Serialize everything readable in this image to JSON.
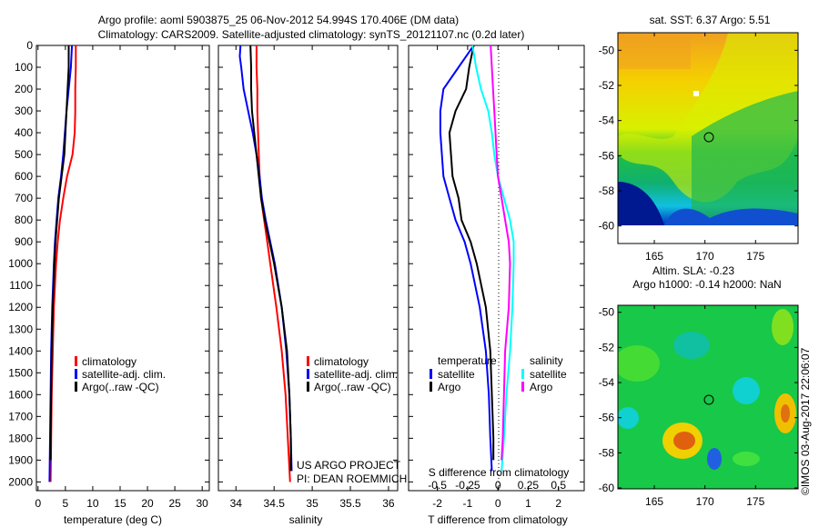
{
  "title": {
    "line1": "Argo profile: aoml 5903875_25 06-Nov-2012 54.994S 170.406E (DM data)",
    "line2": "Climatology: CARS2009. Satellite-adjusted climatology: synTS_20121107.nc (0.2d later)"
  },
  "credit": {
    "line1": "US ARGO PROJECT",
    "line2": "PI: DEAN ROEMMICH"
  },
  "stamp": "©IMOS 03-Aug-2017 22:06:07",
  "colors": {
    "climatology": "#ff0000",
    "satellite": "#0000ff",
    "argo": "#000000",
    "sal_satellite": "#00ffff",
    "sal_argo": "#ff00ff"
  },
  "chart_data": [
    {
      "type": "line",
      "title": "",
      "xlabel": "temperature (deg C)",
      "ylabel": "",
      "xlim": [
        -0.3,
        31.3
      ],
      "ylim": [
        2040,
        0
      ],
      "xticks": [
        "0",
        "5",
        "10",
        "15",
        "20",
        "25",
        "30"
      ],
      "xtick_values": [
        0,
        5,
        10,
        15,
        20,
        25,
        30
      ],
      "yticks": [
        "0",
        "100",
        "200",
        "300",
        "400",
        "500",
        "600",
        "700",
        "800",
        "900",
        "1000",
        "1100",
        "1200",
        "1300",
        "1400",
        "1500",
        "1600",
        "1700",
        "1800",
        "1900",
        "2000"
      ],
      "legend": [
        "climatology",
        "satellite-adj. clim.",
        "Argo(..raw -QC)"
      ],
      "series": [
        {
          "name": "climatology",
          "depth": [
            0,
            100,
            200,
            300,
            400,
            500,
            600,
            700,
            800,
            900,
            1000,
            1200,
            1400,
            1600,
            1800,
            2000
          ],
          "values": [
            6.9,
            6.9,
            6.8,
            6.8,
            6.7,
            6.3,
            5.3,
            4.6,
            4.0,
            3.6,
            3.3,
            2.9,
            2.7,
            2.5,
            2.4,
            2.3
          ]
        },
        {
          "name": "satellite-adj. clim.",
          "depth": [
            0,
            100,
            200,
            300,
            400,
            500,
            600,
            700,
            800,
            900,
            1000,
            1200,
            1400,
            1600,
            1800,
            2000
          ],
          "values": [
            6.2,
            6.0,
            5.6,
            5.2,
            4.9,
            4.6,
            4.2,
            3.7,
            3.4,
            3.1,
            2.9,
            2.6,
            2.4,
            2.3,
            2.2,
            2.1
          ]
        },
        {
          "name": "Argo(..raw -QC)",
          "depth": [
            0,
            100,
            200,
            300,
            400,
            500,
            600,
            700,
            800,
            900,
            1000,
            1200,
            1400,
            1600,
            1800,
            1900
          ],
          "values": [
            5.6,
            5.6,
            5.4,
            5.2,
            5.0,
            4.8,
            4.3,
            3.8,
            3.5,
            3.2,
            3.0,
            2.7,
            2.5,
            2.4,
            2.3,
            2.3
          ]
        }
      ]
    },
    {
      "type": "line",
      "xlabel": "salinity",
      "xlim": [
        33.77,
        36.12
      ],
      "ylim": [
        2040,
        0
      ],
      "xticks": [
        "34",
        "34.5",
        "35",
        "35.5",
        "36"
      ],
      "xtick_values": [
        34,
        34.5,
        35,
        35.5,
        36
      ],
      "legend": [
        "climatology",
        "satellite-adj. clim.",
        "Argo(..raw -QC)"
      ],
      "series": [
        {
          "name": "climatology",
          "depth": [
            0,
            100,
            200,
            300,
            400,
            500,
            600,
            700,
            800,
            900,
            1000,
            1200,
            1400,
            1600,
            1800,
            2000
          ],
          "values": [
            34.27,
            34.27,
            34.28,
            34.28,
            34.29,
            34.3,
            34.31,
            34.33,
            34.37,
            34.41,
            34.45,
            34.53,
            34.6,
            34.65,
            34.68,
            34.71
          ]
        },
        {
          "name": "satellite-adj. clim.",
          "depth": [
            0,
            50,
            100,
            200,
            300,
            400,
            500,
            600,
            700,
            800,
            900,
            1000,
            1200,
            1400,
            1600,
            1800,
            1950
          ],
          "values": [
            34.06,
            34.05,
            34.07,
            34.1,
            34.16,
            34.22,
            34.27,
            34.31,
            34.34,
            34.39,
            34.45,
            34.51,
            34.6,
            34.66,
            34.7,
            34.72,
            34.73
          ]
        },
        {
          "name": "Argo(..raw -QC)",
          "depth": [
            0,
            100,
            200,
            300,
            400,
            500,
            600,
            700,
            800,
            900,
            1000,
            1200,
            1400,
            1600,
            1800,
            1950
          ],
          "values": [
            34.19,
            34.2,
            34.2,
            34.21,
            34.24,
            34.27,
            34.3,
            34.33,
            34.38,
            34.44,
            34.5,
            34.6,
            34.67,
            34.7,
            34.72,
            34.72
          ]
        }
      ]
    },
    {
      "type": "line",
      "xlabel": "T difference from climatology",
      "x2label": "S difference from climatology",
      "xlim": [
        -2.95,
        2.85
      ],
      "ylim": [
        2040,
        0
      ],
      "xticks": [
        "-2",
        "-1",
        "0",
        "1",
        "2"
      ],
      "xtick_values": [
        -2,
        -1,
        0,
        1,
        2
      ],
      "x2ticks": [
        "-0.5",
        "-0.25",
        "0",
        "0.25",
        "0.5"
      ],
      "x2tick_values": [
        -0.5,
        -0.25,
        0,
        0.25,
        0.5
      ],
      "legend_temperature": {
        "title": "temperature",
        "items": [
          "satellite",
          "Argo"
        ]
      },
      "legend_salinity": {
        "title": "salinity",
        "items": [
          "satellite",
          "Argo"
        ]
      },
      "series": [
        {
          "name": "temperature satellite",
          "axis": "T",
          "depth": [
            0,
            100,
            200,
            300,
            400,
            500,
            600,
            700,
            800,
            900,
            1000,
            1200,
            1400,
            1600,
            1800,
            1950
          ],
          "values": [
            -0.8,
            -1.3,
            -1.8,
            -1.9,
            -1.9,
            -1.85,
            -1.8,
            -1.6,
            -1.4,
            -1.1,
            -0.9,
            -0.6,
            -0.4,
            -0.3,
            -0.25,
            -0.2
          ]
        },
        {
          "name": "temperature Argo",
          "axis": "T",
          "depth": [
            0,
            100,
            200,
            300,
            400,
            500,
            600,
            700,
            800,
            900,
            1000,
            1200,
            1400,
            1600,
            1800,
            1900
          ],
          "values": [
            -0.8,
            -0.95,
            -1.05,
            -1.4,
            -1.6,
            -1.55,
            -1.5,
            -1.3,
            -1.2,
            -0.9,
            -0.7,
            -0.4,
            -0.25,
            -0.2,
            -0.15,
            -0.15
          ]
        },
        {
          "name": "salinity satellite",
          "axis": "S",
          "depth": [
            0,
            100,
            200,
            300,
            400,
            500,
            600,
            700,
            800,
            900,
            1000,
            1200,
            1400,
            1600,
            1800,
            1950
          ],
          "values": [
            -0.21,
            -0.18,
            -0.14,
            -0.08,
            -0.05,
            -0.03,
            0.0,
            0.05,
            0.1,
            0.13,
            0.13,
            0.12,
            0.1,
            0.07,
            0.05,
            0.03
          ]
        },
        {
          "name": "salinity Argo",
          "axis": "S",
          "depth": [
            0,
            100,
            200,
            300,
            400,
            500,
            600,
            700,
            800,
            900,
            1000,
            1200,
            1400,
            1600,
            1800,
            1900
          ],
          "values": [
            -0.06,
            -0.05,
            -0.04,
            -0.03,
            -0.02,
            -0.01,
            0.0,
            0.03,
            0.06,
            0.09,
            0.1,
            0.09,
            0.06,
            0.05,
            0.04,
            0.03
          ]
        }
      ]
    },
    {
      "type": "heatmap",
      "title": "sat. SST: 6.37 Argo: 5.51",
      "xlim": [
        161.4,
        179.2
      ],
      "ylim": [
        -61,
        -49
      ],
      "xticks": [
        "165",
        "170",
        "175"
      ],
      "xtick_values": [
        165,
        170,
        175
      ],
      "yticks": [
        "-50",
        "-52",
        "-54",
        "-56",
        "-58",
        "-60"
      ],
      "ytick_values": [
        -50,
        -52,
        -54,
        -56,
        -58,
        -60
      ],
      "marker": {
        "lon": 170.406,
        "lat": -54.994
      }
    },
    {
      "type": "heatmap",
      "title": "Altim. SLA: -0.23",
      "subtitle": "Argo h1000: -0.14 h2000: NaN",
      "xlim": [
        161.4,
        179.2
      ],
      "ylim": [
        -60.05,
        -49.6
      ],
      "xticks": [
        "165",
        "170",
        "175"
      ],
      "xtick_values": [
        165,
        170,
        175
      ],
      "yticks": [
        "-50",
        "-52",
        "-54",
        "-56",
        "-58",
        "-60"
      ],
      "ytick_values": [
        -50,
        -52,
        -54,
        -56,
        -58,
        -60
      ],
      "marker": {
        "lon": 170.406,
        "lat": -54.994
      }
    }
  ]
}
